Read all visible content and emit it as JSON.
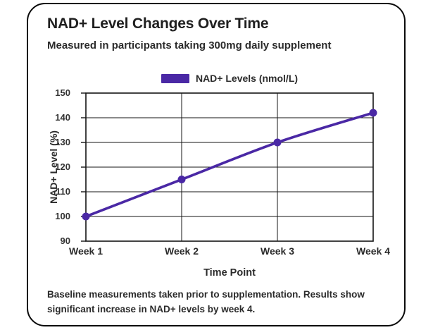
{
  "card": {
    "title": "NAD+ Level Changes Over Time",
    "subtitle": "Measured in participants taking 300mg daily supplement"
  },
  "legend": {
    "label": "NAD+ Levels (nmol/L)",
    "color": "#4a28a5"
  },
  "chart_data": {
    "type": "line",
    "categories": [
      "Week 1",
      "Week 2",
      "Week 3",
      "Week 4"
    ],
    "series": [
      {
        "name": "NAD+ Levels (nmol/L)",
        "values": [
          100,
          115,
          130,
          142
        ],
        "color": "#4a28a5"
      }
    ],
    "xlabel": "Time Point",
    "ylabel": "NAD+ Level (%)",
    "ylim": [
      90,
      150
    ],
    "ytick_step": 10,
    "grid": true,
    "legend_position": "top",
    "axis_color": "#141414"
  },
  "footer": {
    "lines": [
      "Baseline measurements taken prior to supplementation. Results show",
      "significant increase in NAD+ levels by week 4."
    ]
  }
}
